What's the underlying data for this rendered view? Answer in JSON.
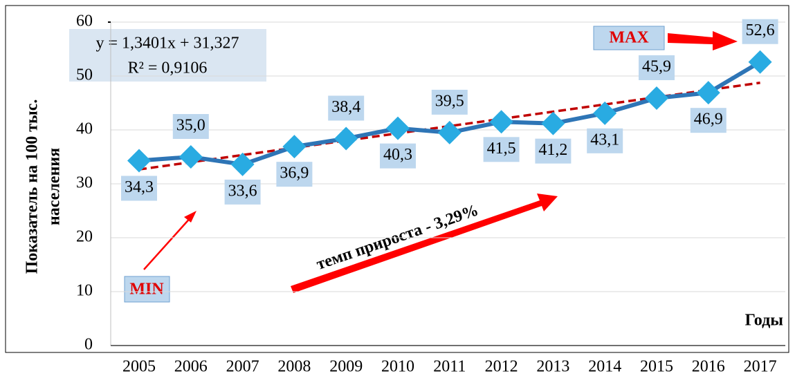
{
  "chart_data": {
    "type": "line",
    "y_label_lines": [
      "Показатель на 100 тыс.",
      "населения"
    ],
    "x_label": "Годы",
    "categories": [
      "2005",
      "2006",
      "2007",
      "2008",
      "2009",
      "2010",
      "2011",
      "2012",
      "2013",
      "2014",
      "2015",
      "2016",
      "2017"
    ],
    "series": [
      {
        "color": "#2e75b6",
        "marker_color": "#29abe2",
        "values": [
          34.3,
          35.0,
          33.6,
          36.9,
          38.4,
          40.3,
          39.5,
          41.5,
          41.2,
          43.1,
          45.9,
          46.9,
          52.6
        ],
        "value_labels": [
          "34,3",
          "35,0",
          "33,6",
          "36,9",
          "38,4",
          "40,3",
          "39,5",
          "41,5",
          "41,2",
          "43,1",
          "45,9",
          "46,9",
          "52,6"
        ]
      }
    ],
    "trend": {
      "slope": 1.3401,
      "intercept": 31.327,
      "color": "#c00000",
      "equation": "y = 1,3401x + 31,327",
      "r2_label": "R² = 0,9106"
    },
    "ylim": [
      0,
      60
    ],
    "yticks": [
      0,
      10,
      20,
      30,
      40,
      50,
      60
    ],
    "grid": true,
    "annotations": {
      "min": "MIN",
      "max": "MAX",
      "growth": "темп прироста - 3,29%"
    }
  }
}
